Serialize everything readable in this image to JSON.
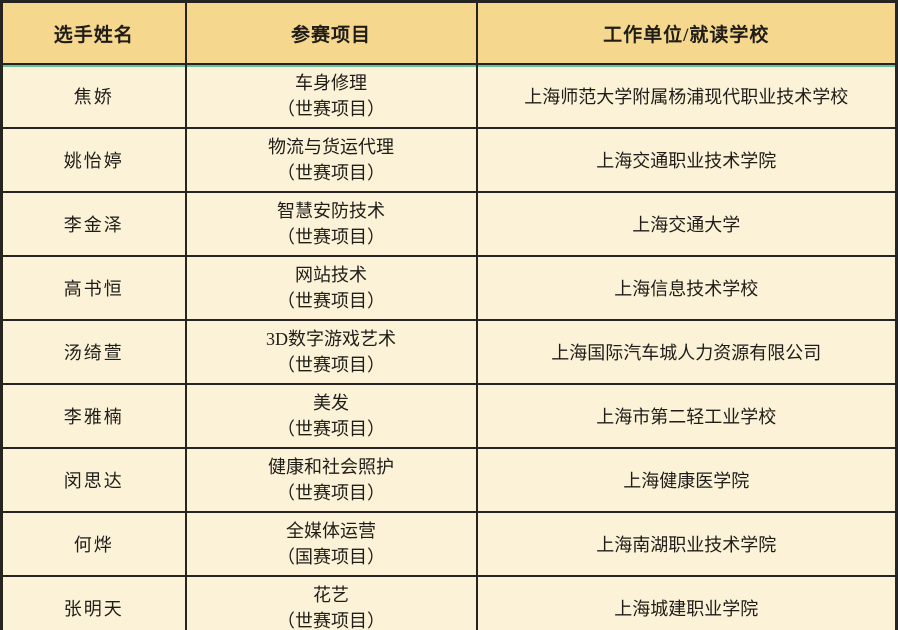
{
  "colors": {
    "header_bg": "#f5d78e",
    "row_bg": "#fbf2d8",
    "border": "#262420",
    "accent_line": "#67c19a",
    "text": "#201d18",
    "page_bg": "#ffffff"
  },
  "table": {
    "columns": {
      "name": "选手姓名",
      "event": "参赛项目",
      "org": "工作单位/就读学校"
    },
    "rows": [
      {
        "name": "焦娇",
        "event": "车身修理",
        "event_type": "（世赛项目）",
        "org": "上海师范大学附属杨浦现代职业技术学校"
      },
      {
        "name": "姚怡婷",
        "event": "物流与货运代理",
        "event_type": "（世赛项目）",
        "org": "上海交通职业技术学院"
      },
      {
        "name": "李金泽",
        "event": "智慧安防技术",
        "event_type": "（世赛项目）",
        "org": "上海交通大学"
      },
      {
        "name": "高书恒",
        "event": "网站技术",
        "event_type": "（世赛项目）",
        "org": "上海信息技术学校"
      },
      {
        "name": "汤绮萱",
        "event": "3D数字游戏艺术",
        "event_type": "（世赛项目）",
        "org": "上海国际汽车城人力资源有限公司"
      },
      {
        "name": "李雅楠",
        "event": "美发",
        "event_type": "（世赛项目）",
        "org": "上海市第二轻工业学校"
      },
      {
        "name": "闵思达",
        "event": "健康和社会照护",
        "event_type": "（世赛项目）",
        "org": "上海健康医学院"
      },
      {
        "name": "何烨",
        "event": "全媒体运营",
        "event_type": "（国赛项目）",
        "org": "上海南湖职业技术学院"
      },
      {
        "name": "张明天",
        "event": "花艺",
        "event_type": "（世赛项目）",
        "org": "上海城建职业学院"
      }
    ]
  }
}
